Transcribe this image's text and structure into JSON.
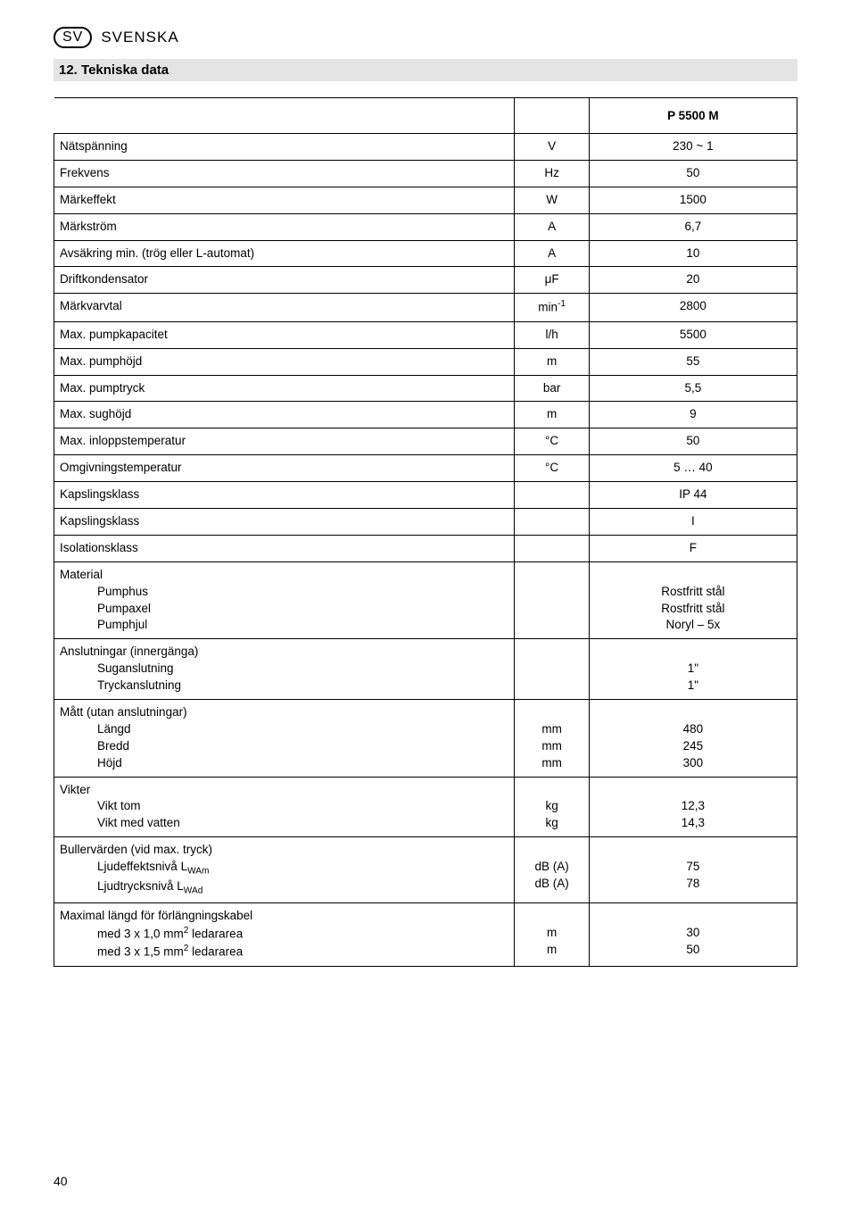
{
  "page": {
    "lang_code": "SV",
    "lang_name": "SVENSKA",
    "section_number": "12.",
    "section_title": "Tekniska data",
    "page_number": "40"
  },
  "table": {
    "model_header": "P 5500 M",
    "rows": [
      {
        "label": "Nätspänning",
        "unit": "V",
        "value": "230 ~ 1"
      },
      {
        "label": "Frekvens",
        "unit": "Hz",
        "value": "50"
      },
      {
        "label": "Märkeffekt",
        "unit": "W",
        "value": "1500"
      },
      {
        "label": "Märkström",
        "unit": "A",
        "value": "6,7"
      },
      {
        "label": "Avsäkring min. (trög eller L-automat)",
        "unit": "A",
        "value": "10"
      },
      {
        "label": "Driftkondensator",
        "unit_html": "μF",
        "value": "20"
      },
      {
        "label": "Märkvarvtal",
        "unit_html": "min<sup>-1</sup>",
        "value": "2800"
      },
      {
        "label": "Max. pumpkapacitet",
        "unit": "l/h",
        "value": "5500"
      },
      {
        "label": "Max. pumphöjd",
        "unit": "m",
        "value": "55"
      },
      {
        "label": "Max. pumptryck",
        "unit": "bar",
        "value": "5,5"
      },
      {
        "label": "Max. sughöjd",
        "unit": "m",
        "value": "9"
      },
      {
        "label": "Max. inloppstemperatur",
        "unit": "°C",
        "value": "50"
      },
      {
        "label": "Omgivningstemperatur",
        "unit": "°C",
        "value": "5 … 40"
      },
      {
        "label": "Kapslingsklass",
        "unit": "",
        "value": "IP 44"
      },
      {
        "label": "Kapslingsklass",
        "unit": "",
        "value": "I"
      },
      {
        "label": "Isolationsklass",
        "unit": "",
        "value": "F"
      },
      {
        "label_html": "Material<br><span class=\"indent\">Pumphus</span><span class=\"indent\">Pumpaxel</span><span class=\"indent\">Pumphjul</span>",
        "unit": "",
        "value_html": "<br>Rostfritt stål<br>Rostfritt stål<br>Noryl – 5x"
      },
      {
        "label_html": "Anslutningar (innergänga)<br><span class=\"indent\">Suganslutning</span><span class=\"indent\">Tryckanslutning</span>",
        "unit": "",
        "value_html": "<br>1\"<br>1\""
      },
      {
        "label_html": "Mått (utan anslutningar)<br><span class=\"indent\">Längd</span><span class=\"indent\">Bredd</span><span class=\"indent\">Höjd</span>",
        "unit_html": "<br>mm<br>mm<br>mm",
        "value_html": "<br>480<br>245<br>300"
      },
      {
        "label_html": "Vikter<br><span class=\"indent\">Vikt tom</span><span class=\"indent\">Vikt med vatten</span>",
        "unit_html": "<br>kg<br>kg",
        "value_html": "<br>12,3<br>14,3"
      },
      {
        "label_html": "Bullervärden (vid max. tryck)<br><span class=\"indent\">Ljudeffektsnivå L<sub>WAm</sub></span><span class=\"indent\">Ljudtrycksnivå L<sub>WAd</sub></span>",
        "unit_html": "<br>dB (A)<br>dB (A)",
        "value_html": "<br>75<br>78"
      },
      {
        "label_html": "Maximal längd för förlängningskabel<br><span class=\"indent\">med 3 x 1,0 mm<sup>2</sup> ledararea</span><span class=\"indent\">med 3 x 1,5 mm<sup>2</sup> ledararea</span>",
        "unit_html": "<br>m<br>m",
        "value_html": "<br>30<br>50"
      }
    ]
  }
}
